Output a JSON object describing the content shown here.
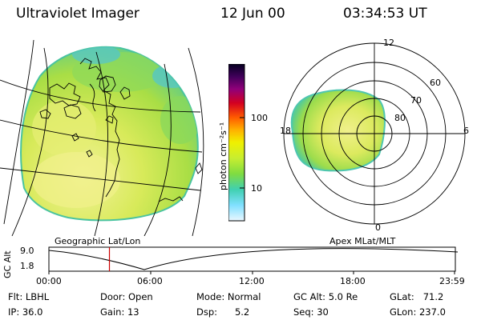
{
  "header": {
    "title": "Ultraviolet Imager",
    "date": "12 Jun 00",
    "time": "03:34:53 UT"
  },
  "colorbar": {
    "label": "photon cm⁻²s⁻¹",
    "tick_high": "100",
    "tick_low": "10"
  },
  "left_panel": {
    "caption": "Geographic Lat/Lon"
  },
  "right_panel": {
    "caption": "Apex MLat/MLT",
    "mlt_labels": {
      "top": "12",
      "left": "18",
      "right": "6",
      "bottom": "0"
    },
    "lat_labels": [
      "60",
      "70",
      "80"
    ]
  },
  "timeline": {
    "ylabel": "GC Alt",
    "ytick_high": "9.0",
    "ytick_low": "1.8",
    "xticks": [
      "00:00",
      "06:00",
      "12:00",
      "18:00",
      "23:59"
    ],
    "marker_time": "03:34:53",
    "marker_color": "#cc0000"
  },
  "info": {
    "flt": "Flt: LBHL",
    "ip": "IP: 36.0",
    "door": "Door: Open",
    "gain": "Gain: 13",
    "mode": "Mode: Normal",
    "dsp": "Dsp:      5.2",
    "gcalt": "GC Alt: 5.0 Re",
    "seq": "Seq: 30",
    "glat": "GLat:   71.2",
    "glon": "GLon: 237.0"
  }
}
